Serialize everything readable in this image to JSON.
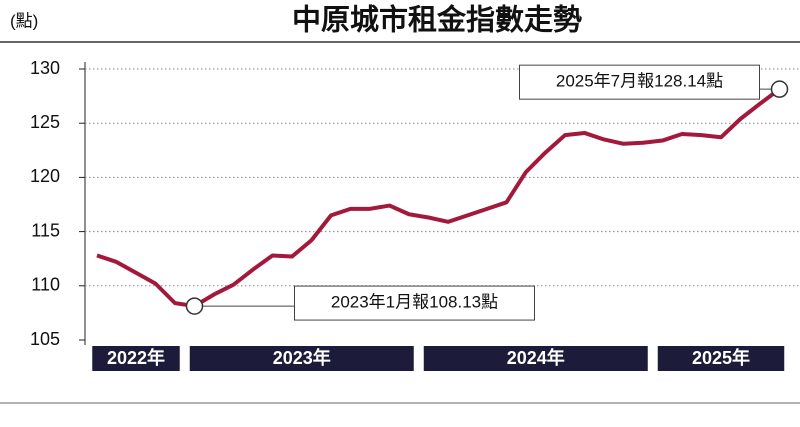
{
  "chart_data": {
    "type": "line",
    "title": "中原城市租金指數走勢",
    "y_label": "(點)",
    "categories": [
      "2022年",
      null,
      null,
      null,
      null,
      "2023年",
      null,
      null,
      null,
      null,
      null,
      null,
      null,
      null,
      null,
      null,
      null,
      "2024年",
      null,
      null,
      null,
      null,
      null,
      null,
      null,
      null,
      null,
      null,
      null,
      "2025年",
      null,
      null,
      null,
      null,
      null,
      null
    ],
    "series": [
      {
        "name": "中原城市租金指數",
        "color": "#a3193c",
        "values": [
          112.8,
          112.2,
          111.2,
          110.2,
          108.4,
          108.13,
          109.2,
          110.1,
          111.5,
          112.8,
          112.7,
          114.2,
          116.5,
          117.1,
          117.1,
          117.4,
          116.6,
          116.3,
          115.9,
          116.5,
          117.1,
          117.7,
          120.5,
          122.3,
          123.9,
          124.1,
          123.5,
          123.1,
          123.2,
          123.4,
          124.0,
          123.9,
          123.7,
          125.4,
          126.8,
          128.14
        ],
        "value_labels": [
          null,
          null,
          null,
          null,
          null,
          "2023年1月報108.13點",
          null,
          null,
          null,
          null,
          null,
          null,
          null,
          null,
          null,
          null,
          null,
          null,
          null,
          null,
          null,
          null,
          null,
          null,
          null,
          null,
          null,
          null,
          null,
          null,
          null,
          null,
          null,
          null,
          null,
          "2025年7月報128.14點"
        ]
      }
    ],
    "ylim": [
      105,
      130
    ],
    "yticks": [
      105,
      110,
      115,
      120,
      125,
      130
    ],
    "grid": true
  }
}
